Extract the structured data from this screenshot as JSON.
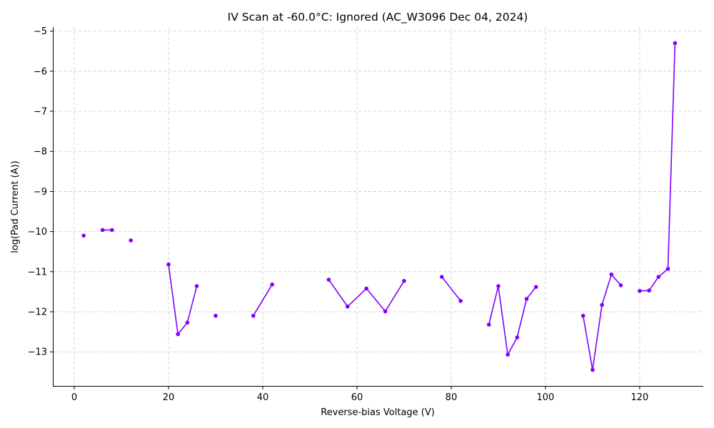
{
  "chart_data": {
    "type": "line",
    "title": "IV Scan at -60.0$^\\circ$C: Ignored (AC_W3096 Dec 04, 2024)",
    "title_display": "IV Scan at -60.0°C: Ignored (AC_W3096 Dec 04, 2024)",
    "xlabel": "Reverse-bias Voltage (V)",
    "ylabel": "log(Pad Current (A))",
    "xlim": [
      -4.4,
      133.5
    ],
    "ylim": [
      -13.85,
      -4.9
    ],
    "xticks": [
      0,
      20,
      40,
      60,
      80,
      100,
      120
    ],
    "yticks": [
      -13,
      -12,
      -11,
      -10,
      -9,
      -8,
      -7,
      -6,
      -5
    ],
    "grid": true,
    "legend": "none",
    "series_color": "#8000ff",
    "series": [
      {
        "x": [
          2,
          6,
          8,
          12,
          20,
          22,
          24,
          26,
          30,
          38,
          42,
          54,
          58,
          62,
          66,
          70,
          78,
          82,
          88,
          90,
          92,
          94,
          96,
          98,
          108,
          110,
          112,
          114,
          116,
          120,
          122,
          124,
          126,
          127.5
        ],
        "y": [
          -10.1,
          -9.96,
          -9.96,
          -10.22,
          -10.82,
          -12.56,
          -12.27,
          -11.36,
          -12.1,
          -12.1,
          -11.32,
          -11.2,
          -11.87,
          -11.42,
          -11.99,
          -11.23,
          -11.13,
          -11.73,
          -12.32,
          -11.36,
          -13.07,
          -12.64,
          -11.68,
          -11.38,
          -12.1,
          -13.45,
          -11.83,
          -11.07,
          -11.34,
          -11.48,
          -11.47,
          -11.13,
          -10.93,
          -5.3
        ],
        "segments": [
          [
            2
          ],
          [
            6,
            8
          ],
          [
            12
          ],
          [
            20,
            22,
            24,
            26
          ],
          [
            30
          ],
          [
            38,
            42
          ],
          [
            54,
            58,
            62,
            66,
            70
          ],
          [
            78,
            82
          ],
          [
            88,
            90,
            92,
            94,
            96,
            98
          ],
          [
            108,
            110,
            112,
            114,
            116
          ],
          [
            120,
            122,
            124,
            126,
            127.5
          ]
        ]
      }
    ]
  }
}
